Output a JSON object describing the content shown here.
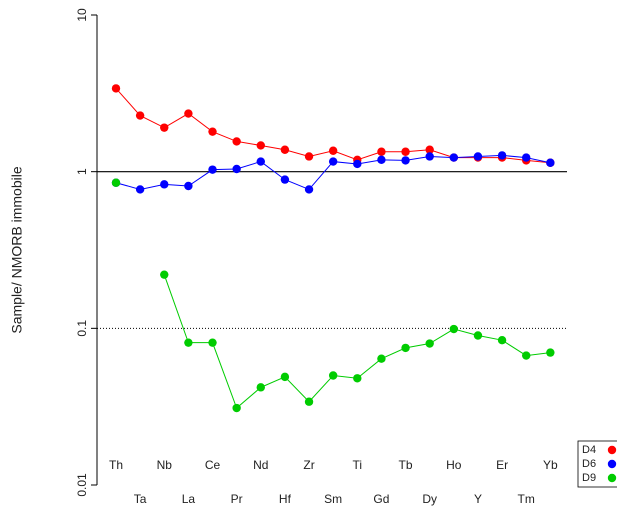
{
  "chart_data": {
    "type": "line",
    "ylabel": "Sample/ NMORB immobile",
    "categories": [
      "Th",
      "Ta",
      "Nb",
      "La",
      "Ce",
      "Pr",
      "Nd",
      "Hf",
      "Zr",
      "Sm",
      "Ti",
      "Gd",
      "Tb",
      "Dy",
      "Ho",
      "Y",
      "Er",
      "Tm",
      "Yb"
    ],
    "series": [
      {
        "name": "D4",
        "color": "#ff0000",
        "values": [
          3.4,
          2.28,
          1.91,
          2.35,
          1.8,
          1.56,
          1.47,
          1.38,
          1.25,
          1.36,
          1.19,
          1.34,
          1.34,
          1.38,
          1.23,
          1.23,
          1.23,
          1.18,
          1.14
        ]
      },
      {
        "name": "D6",
        "color": "#0000ff",
        "values": [
          0.85,
          0.77,
          0.83,
          0.81,
          1.03,
          1.04,
          1.16,
          0.89,
          0.77,
          1.16,
          1.12,
          1.19,
          1.18,
          1.25,
          1.23,
          1.25,
          1.27,
          1.23,
          1.14
        ]
      },
      {
        "name": "D9",
        "color": "#00cc00",
        "values": [
          0.85,
          null,
          0.22,
          0.081,
          0.081,
          0.031,
          0.042,
          0.049,
          0.034,
          0.05,
          0.048,
          0.064,
          0.075,
          0.08,
          0.099,
          0.09,
          0.084,
          0.067,
          0.07
        ]
      }
    ],
    "ylog": true,
    "ylim": [
      0.01,
      10
    ],
    "yticks": [
      0.01,
      0.1,
      1,
      10
    ],
    "reference_lines": [
      {
        "value": 1,
        "style": "solid"
      },
      {
        "value": 0.1,
        "style": "dotted"
      }
    ],
    "legend": "bottom-right"
  }
}
